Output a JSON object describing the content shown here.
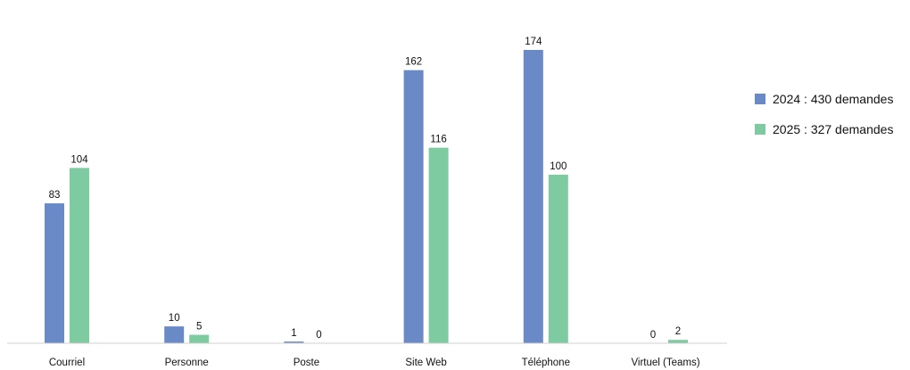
{
  "chart_data": {
    "type": "bar",
    "categories": [
      "Courriel",
      "Personne",
      "Poste",
      "Site Web",
      "Téléphone",
      "Virtuel (Teams)"
    ],
    "series": [
      {
        "name": "2024 : 430 demandes",
        "color": "#6a8ac7",
        "values": [
          83,
          10,
          1,
          162,
          174,
          0
        ]
      },
      {
        "name": "2025 : 327 demandes",
        "color": "#7ecba1",
        "values": [
          104,
          5,
          0,
          116,
          100,
          2
        ]
      }
    ],
    "title": "",
    "xlabel": "",
    "ylabel": "",
    "ylim": [
      0,
      200
    ],
    "grid": false,
    "legend_position": "right"
  }
}
